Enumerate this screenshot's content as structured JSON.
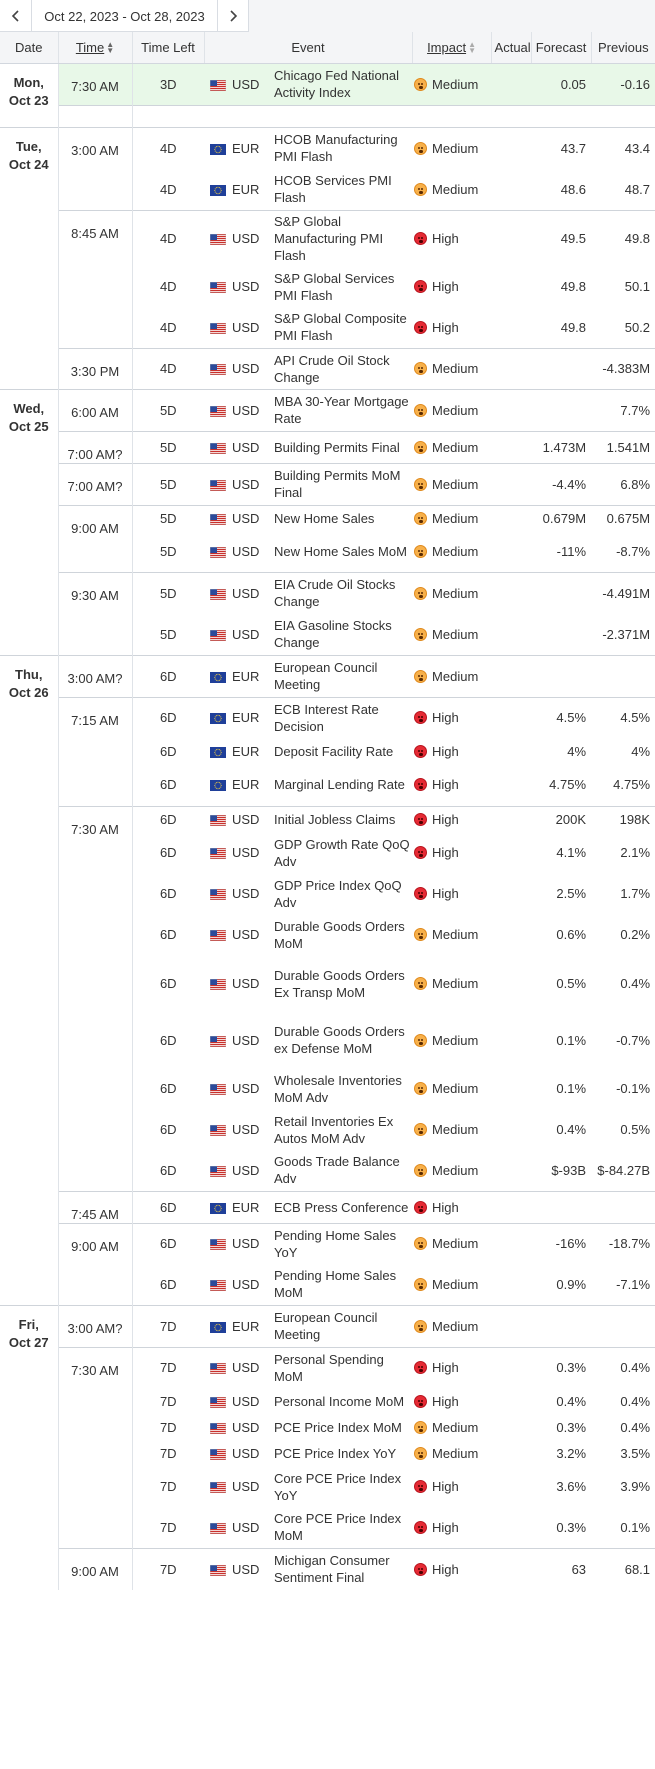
{
  "navigation": {
    "range": "Oct 22, 2023 - Oct 28, 2023",
    "prev_icon": "chevron-left-icon",
    "next_icon": "chevron-right-icon"
  },
  "table": {
    "columns": [
      "Date",
      "Time",
      "Time Left",
      "Event",
      "Impact",
      "Actual",
      "Forecast",
      "Previous"
    ]
  },
  "colors": {
    "medium_impact": "#f7b04a",
    "high_impact": "#e52a34",
    "highlight_row": "#e8f8e8",
    "header_bg": "#f4f5f7"
  },
  "days": [
    {
      "day": "Mon,",
      "date": "Oct 23",
      "groups": [
        {
          "time": "7:30 AM",
          "highlight": true,
          "events": [
            {
              "time_left": "3D",
              "currency": "USD",
              "event": "Chicago Fed National Activity Index",
              "impact": "Medium",
              "actual": "",
              "forecast": "0.05",
              "previous": "-0.16"
            }
          ]
        },
        {
          "time": "",
          "spacer": true,
          "events": []
        }
      ]
    },
    {
      "day": "Tue,",
      "date": "Oct 24",
      "groups": [
        {
          "time": "3:00 AM",
          "events": [
            {
              "time_left": "4D",
              "currency": "EUR",
              "event": "HCOB Manufacturing PMI Flash",
              "impact": "Medium",
              "actual": "",
              "forecast": "43.7",
              "previous": "43.4"
            },
            {
              "time_left": "4D",
              "currency": "EUR",
              "event": "HCOB Services PMI Flash",
              "impact": "Medium",
              "actual": "",
              "forecast": "48.6",
              "previous": "48.7"
            }
          ]
        },
        {
          "time": "8:45 AM",
          "events": [
            {
              "time_left": "4D",
              "currency": "USD",
              "event": "S&P Global Manufacturing PMI Flash",
              "impact": "High",
              "actual": "",
              "forecast": "49.5",
              "previous": "49.8"
            },
            {
              "time_left": "4D",
              "currency": "USD",
              "event": "S&P Global Services PMI Flash",
              "impact": "High",
              "actual": "",
              "forecast": "49.8",
              "previous": "50.1"
            },
            {
              "time_left": "4D",
              "currency": "USD",
              "event": "S&P Global Composite PMI Flash",
              "impact": "High",
              "actual": "",
              "forecast": "49.8",
              "previous": "50.2"
            }
          ]
        },
        {
          "time": "3:30 PM",
          "events": [
            {
              "time_left": "4D",
              "currency": "USD",
              "event": "API Crude Oil Stock Change",
              "impact": "Medium",
              "actual": "",
              "forecast": "",
              "previous": "-4.383M"
            }
          ]
        }
      ]
    },
    {
      "day": "Wed,",
      "date": "Oct 25",
      "groups": [
        {
          "time": "6:00 AM",
          "events": [
            {
              "time_left": "5D",
              "currency": "USD",
              "event": "MBA 30-Year Mortgage Rate",
              "impact": "Medium",
              "actual": "",
              "forecast": "",
              "previous": "7.7%"
            }
          ]
        },
        {
          "time": "7:00 AM?",
          "events": [
            {
              "time_left": "5D",
              "currency": "USD",
              "event": "Building Permits Final",
              "impact": "Medium",
              "actual": "",
              "forecast": "1.473M",
              "previous": "1.541M"
            }
          ]
        },
        {
          "time": "7:00 AM?",
          "events": [
            {
              "time_left": "5D",
              "currency": "USD",
              "event": "Building Permits MoM Final",
              "impact": "Medium",
              "actual": "",
              "forecast": "-4.4%",
              "previous": "6.8%"
            }
          ]
        },
        {
          "time": "9:00 AM",
          "events": [
            {
              "time_left": "5D",
              "currency": "USD",
              "event": "New Home Sales",
              "impact": "Medium",
              "actual": "",
              "forecast": "0.679M",
              "previous": "0.675M"
            },
            {
              "time_left": "5D",
              "currency": "USD",
              "event": "New Home Sales MoM",
              "impact": "Medium",
              "actual": "",
              "forecast": "-11%",
              "previous": "-8.7%"
            }
          ]
        },
        {
          "time": "9:30 AM",
          "events": [
            {
              "time_left": "5D",
              "currency": "USD",
              "event": "EIA Crude Oil Stocks Change",
              "impact": "Medium",
              "actual": "",
              "forecast": "",
              "previous": "-4.491M"
            },
            {
              "time_left": "5D",
              "currency": "USD",
              "event": "EIA Gasoline Stocks Change",
              "impact": "Medium",
              "actual": "",
              "forecast": "",
              "previous": "-2.371M"
            }
          ]
        }
      ]
    },
    {
      "day": "Thu,",
      "date": "Oct 26",
      "groups": [
        {
          "time": "3:00 AM?",
          "events": [
            {
              "time_left": "6D",
              "currency": "EUR",
              "event": "European Council Meeting",
              "impact": "Medium",
              "actual": "",
              "forecast": "",
              "previous": ""
            }
          ]
        },
        {
          "time": "7:15 AM",
          "events": [
            {
              "time_left": "6D",
              "currency": "EUR",
              "event": "ECB Interest Rate Decision",
              "impact": "High",
              "actual": "",
              "forecast": "4.5%",
              "previous": "4.5%"
            },
            {
              "time_left": "6D",
              "currency": "EUR",
              "event": "Deposit Facility Rate",
              "impact": "High",
              "actual": "",
              "forecast": "4%",
              "previous": "4%"
            },
            {
              "time_left": "6D",
              "currency": "EUR",
              "event": "Marginal Lending Rate",
              "impact": "High",
              "actual": "",
              "forecast": "4.75%",
              "previous": "4.75%"
            }
          ]
        },
        {
          "time": "7:30 AM",
          "events": [
            {
              "time_left": "6D",
              "currency": "USD",
              "event": "Initial Jobless Claims",
              "impact": "High",
              "actual": "",
              "forecast": "200K",
              "previous": "198K"
            },
            {
              "time_left": "6D",
              "currency": "USD",
              "event": "GDP Growth Rate QoQ Adv",
              "impact": "High",
              "actual": "",
              "forecast": "4.1%",
              "previous": "2.1%"
            },
            {
              "time_left": "6D",
              "currency": "USD",
              "event": "GDP Price Index QoQ Adv",
              "impact": "High",
              "actual": "",
              "forecast": "2.5%",
              "previous": "1.7%"
            },
            {
              "time_left": "6D",
              "currency": "USD",
              "event": "Durable Goods Orders MoM",
              "impact": "Medium",
              "actual": "",
              "forecast": "0.6%",
              "previous": "0.2%"
            },
            {
              "time_left": "6D",
              "currency": "USD",
              "event": "Durable Goods Orders Ex Transp MoM",
              "impact": "Medium",
              "actual": "",
              "forecast": "0.5%",
              "previous": "0.4%"
            },
            {
              "time_left": "6D",
              "currency": "USD",
              "event": "Durable Goods Orders ex Defense MoM",
              "impact": "Medium",
              "actual": "",
              "forecast": "0.1%",
              "previous": "-0.7%"
            },
            {
              "time_left": "6D",
              "currency": "USD",
              "event": "Wholesale Inventories MoM Adv",
              "impact": "Medium",
              "actual": "",
              "forecast": "0.1%",
              "previous": "-0.1%"
            },
            {
              "time_left": "6D",
              "currency": "USD",
              "event": "Retail Inventories Ex Autos MoM Adv",
              "impact": "Medium",
              "actual": "",
              "forecast": "0.4%",
              "previous": "0.5%"
            },
            {
              "time_left": "6D",
              "currency": "USD",
              "event": "Goods Trade Balance Adv",
              "impact": "Medium",
              "actual": "",
              "forecast": "$-93B",
              "previous": "$-84.27B"
            }
          ]
        },
        {
          "time": "7:45 AM",
          "events": [
            {
              "time_left": "6D",
              "currency": "EUR",
              "event": "ECB Press Conference",
              "impact": "High",
              "actual": "",
              "forecast": "",
              "previous": ""
            }
          ]
        },
        {
          "time": "9:00 AM",
          "events": [
            {
              "time_left": "6D",
              "currency": "USD",
              "event": "Pending Home Sales YoY",
              "impact": "Medium",
              "actual": "",
              "forecast": "-16%",
              "previous": "-18.7%"
            },
            {
              "time_left": "6D",
              "currency": "USD",
              "event": "Pending Home Sales MoM",
              "impact": "Medium",
              "actual": "",
              "forecast": "0.9%",
              "previous": "-7.1%"
            }
          ]
        }
      ]
    },
    {
      "day": "Fri,",
      "date": "Oct 27",
      "groups": [
        {
          "time": "3:00 AM?",
          "events": [
            {
              "time_left": "7D",
              "currency": "EUR",
              "event": "European Council Meeting",
              "impact": "Medium",
              "actual": "",
              "forecast": "",
              "previous": ""
            }
          ]
        },
        {
          "time": "7:30 AM",
          "events": [
            {
              "time_left": "7D",
              "currency": "USD",
              "event": "Personal Spending MoM",
              "impact": "High",
              "actual": "",
              "forecast": "0.3%",
              "previous": "0.4%"
            },
            {
              "time_left": "7D",
              "currency": "USD",
              "event": "Personal Income MoM",
              "impact": "High",
              "actual": "",
              "forecast": "0.4%",
              "previous": "0.4%"
            },
            {
              "time_left": "7D",
              "currency": "USD",
              "event": "PCE Price Index MoM",
              "impact": "Medium",
              "actual": "",
              "forecast": "0.3%",
              "previous": "0.4%"
            },
            {
              "time_left": "7D",
              "currency": "USD",
              "event": "PCE Price Index YoY",
              "impact": "Medium",
              "actual": "",
              "forecast": "3.2%",
              "previous": "3.5%"
            },
            {
              "time_left": "7D",
              "currency": "USD",
              "event": "Core PCE Price Index YoY",
              "impact": "High",
              "actual": "",
              "forecast": "3.6%",
              "previous": "3.9%"
            },
            {
              "time_left": "7D",
              "currency": "USD",
              "event": "Core PCE Price Index MoM",
              "impact": "High",
              "actual": "",
              "forecast": "0.3%",
              "previous": "0.1%"
            }
          ]
        },
        {
          "time": "9:00 AM",
          "events": [
            {
              "time_left": "7D",
              "currency": "USD",
              "event": "Michigan Consumer Sentiment Final",
              "impact": "High",
              "actual": "",
              "forecast": "63",
              "previous": "68.1"
            }
          ]
        }
      ]
    }
  ]
}
